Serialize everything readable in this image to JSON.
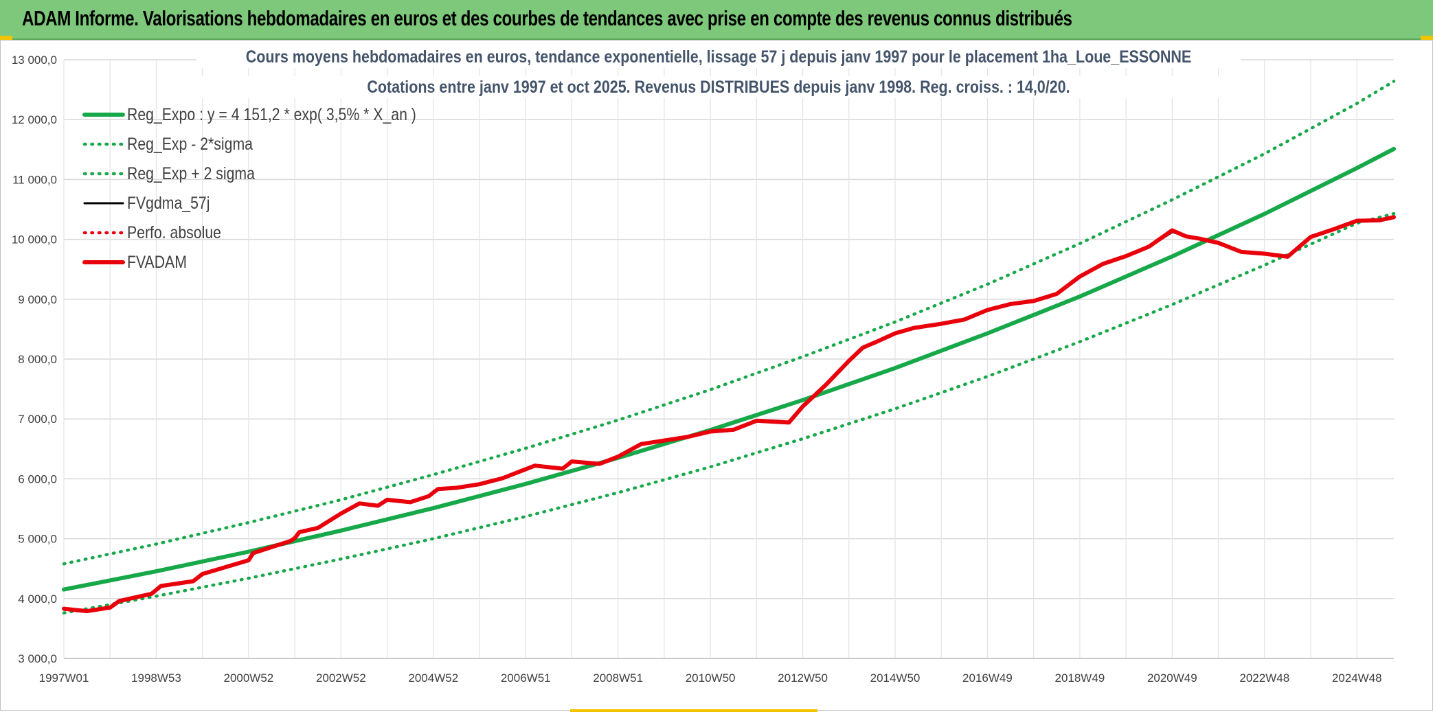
{
  "banner": {
    "title": "ADAM Informe. Valorisations hebdomadaires en euros et des courbes de tendances avec prise en compte des revenus connus distribués"
  },
  "colors": {
    "banner_bg": "#7dc87a",
    "trend": "#17a84a",
    "price": "#e8000b",
    "smooth": "#000000",
    "accent": "#f2c400"
  },
  "chart_data": {
    "type": "line",
    "title_line1": "Cours moyens hebdomadaires en euros, tendance exponentielle, lissage 57 j depuis janv 1997 pour le placement 1ha_Loue_ESSONNE",
    "title_line2": "Cotations entre janv 1997 et oct 2025. Revenus DISTRIBUES depuis janv 1998. Reg. croiss. : 14,0/20.",
    "xlabel": "",
    "ylabel": "",
    "xlim": [
      1997.0,
      2025.8
    ],
    "ylim": [
      3000,
      13000
    ],
    "y_ticks": [
      3000,
      4000,
      5000,
      6000,
      7000,
      8000,
      9000,
      10000,
      11000,
      12000,
      13000
    ],
    "y_tick_labels": [
      "3 000,0",
      "4 000,0",
      "5 000,0",
      "6 000,0",
      "7 000,0",
      "8 000,0",
      "9 000,0",
      "10 000,0",
      "11 000,0",
      "12 000,0",
      "13 000,0"
    ],
    "x_ticks": [
      1997.0,
      1999.0,
      2001.0,
      2003.0,
      2005.0,
      2007.0,
      2009.0,
      2011.0,
      2013.0,
      2015.0,
      2017.0,
      2019.0,
      2021.0,
      2023.0,
      2025.0
    ],
    "x_tick_labels": [
      "1997W01",
      "1998W53",
      "2000W52",
      "2002W52",
      "2004W52",
      "2006W51",
      "2008W51",
      "2010W50",
      "2012W50",
      "2014W50",
      "2016W49",
      "2018W49",
      "2020W49",
      "2022W48",
      "2024W48"
    ],
    "x_minor_gridlines": [
      1998.0,
      2000.0,
      2002.0,
      2004.0,
      2006.0,
      2008.0,
      2010.0,
      2012.0,
      2014.0,
      2016.0,
      2018.0,
      2020.0,
      2022.0,
      2024.0
    ],
    "grid": true,
    "legend_position": "top-left",
    "series": [
      {
        "name": "Reg_Expo : y = 4 151,2 * exp( 3,5% *  X_an )",
        "style": "solid-thick",
        "color": "#17a84a",
        "x": [
          1997,
          1999,
          2001,
          2003,
          2005,
          2007,
          2009,
          2011,
          2013,
          2015,
          2017,
          2019,
          2021,
          2023,
          2025,
          2025.8
        ],
        "values": [
          4151,
          4455,
          4783,
          5135,
          5510,
          5915,
          6350,
          6815,
          7315,
          7850,
          8430,
          9045,
          9715,
          10425,
          11190,
          11510
        ]
      },
      {
        "name": "Reg_Exp - 2*sigma",
        "style": "dotted",
        "color": "#17a84a",
        "x": [
          1997,
          1999,
          2001,
          2003,
          2005,
          2007,
          2009,
          2011,
          2013,
          2015,
          2017,
          2019,
          2021,
          2023,
          2025,
          2025.8
        ],
        "values": [
          3760,
          4040,
          4340,
          4660,
          5000,
          5370,
          5770,
          6200,
          6670,
          7170,
          7710,
          8290,
          8910,
          9570,
          10270,
          10430
        ]
      },
      {
        "name": "Reg_Exp + 2 sigma",
        "style": "dotted",
        "color": "#17a84a",
        "x": [
          1997,
          1999,
          2001,
          2003,
          2005,
          2007,
          2009,
          2011,
          2013,
          2015,
          2017,
          2019,
          2021,
          2023,
          2025,
          2025.8
        ],
        "values": [
          4580,
          4910,
          5270,
          5650,
          6070,
          6510,
          6980,
          7490,
          8040,
          8620,
          9250,
          9930,
          10660,
          11430,
          12270,
          12640
        ]
      },
      {
        "name": "FVgdma_57j",
        "style": "solid",
        "color": "#000000",
        "x": [
          1997.0,
          1997.5,
          1998.0,
          1998.2,
          1998.9,
          1999.1,
          1999.8,
          2000.0,
          2001.0,
          2001.1,
          2001.9,
          2002.0,
          2002.1,
          2002.5,
          2003.0,
          2003.4,
          2003.8,
          2004.0,
          2004.5,
          2004.9,
          2005.1,
          2005.5,
          2006.0,
          2006.5,
          2007.0,
          2007.2,
          2007.8,
          2008.0,
          2008.6,
          2009.0,
          2009.5,
          2010.0,
          2010.5,
          2011.0,
          2011.5,
          2012.0,
          2012.7,
          2013.0,
          2013.5,
          2014.0,
          2014.3,
          2014.6,
          2015.0,
          2015.4,
          2016.0,
          2016.5,
          2017.0,
          2017.5,
          2018.0,
          2018.5,
          2019.0,
          2019.5,
          2020.0,
          2020.5,
          2021.0,
          2021.3,
          2021.6,
          2022.0,
          2022.5,
          2023.0,
          2023.5,
          2024.0,
          2024.5,
          2025.0,
          2025.5,
          2025.8
        ],
        "values": [
          3820,
          3800,
          3860,
          3950,
          4090,
          4200,
          4300,
          4400,
          4650,
          4750,
          4970,
          5000,
          5100,
          5190,
          5430,
          5580,
          5560,
          5640,
          5620,
          5700,
          5820,
          5860,
          5920,
          6000,
          6150,
          6230,
          6180,
          6280,
          6260,
          6360,
          6590,
          6630,
          6710,
          6780,
          6830,
          6960,
          6950,
          7200,
          7580,
          7960,
          8200,
          8280,
          8440,
          8510,
          8600,
          8650,
          8830,
          8910,
          8980,
          9080,
          9390,
          9580,
          9730,
          9870,
          10120,
          10060,
          10020,
          9930,
          9800,
          9750,
          9720,
          10030,
          10180,
          10300,
          10330,
          10360
        ]
      },
      {
        "name": "Perfo. absolue",
        "style": "dotted",
        "color": "#e8000b",
        "x": [
          1997.0,
          1997.5,
          1998.0,
          1998.2,
          1998.9,
          1999.1,
          1999.8,
          2000.0,
          2001.0,
          2001.1,
          2001.9,
          2002.0,
          2002.1,
          2002.5,
          2003.0,
          2003.4,
          2003.8,
          2004.0,
          2004.5,
          2004.9,
          2005.1,
          2005.5,
          2006.0,
          2006.5,
          2007.0,
          2007.2,
          2007.8,
          2008.0,
          2008.6,
          2009.0,
          2009.5,
          2010.0,
          2010.5,
          2011.0,
          2011.5,
          2012.0,
          2012.7,
          2013.0,
          2013.5,
          2014.0,
          2014.3,
          2014.6,
          2015.0,
          2015.4,
          2016.0,
          2016.5,
          2017.0,
          2017.5,
          2018.0,
          2018.5,
          2019.0,
          2019.5,
          2020.0,
          2020.5,
          2021.0,
          2021.3,
          2021.6,
          2022.0,
          2022.5,
          2023.0,
          2023.5,
          2024.0,
          2024.5,
          2025.0,
          2025.5,
          2025.8
        ],
        "values": [
          3830,
          3790,
          3850,
          3960,
          4080,
          4210,
          4290,
          4410,
          4640,
          4760,
          4960,
          5010,
          5110,
          5180,
          5420,
          5590,
          5550,
          5650,
          5610,
          5710,
          5830,
          5850,
          5910,
          6010,
          6160,
          6220,
          6170,
          6290,
          6250,
          6370,
          6580,
          6640,
          6700,
          6790,
          6820,
          6970,
          6940,
          7210,
          7570,
          7970,
          8190,
          8290,
          8430,
          8520,
          8590,
          8660,
          8820,
          8920,
          8970,
          9090,
          9380,
          9590,
          9720,
          9880,
          10150,
          10050,
          10010,
          9940,
          9790,
          9760,
          9710,
          10040,
          10170,
          10310,
          10320,
          10370
        ]
      },
      {
        "name": "FVADAM",
        "style": "solid-thick",
        "color": "#e8000b",
        "x": [
          1997.0,
          1997.5,
          1998.0,
          1998.2,
          1998.9,
          1999.1,
          1999.8,
          2000.0,
          2001.0,
          2001.1,
          2001.9,
          2002.0,
          2002.1,
          2002.5,
          2003.0,
          2003.4,
          2003.8,
          2004.0,
          2004.5,
          2004.9,
          2005.1,
          2005.5,
          2006.0,
          2006.5,
          2007.0,
          2007.2,
          2007.8,
          2008.0,
          2008.6,
          2009.0,
          2009.5,
          2010.0,
          2010.5,
          2011.0,
          2011.5,
          2012.0,
          2012.7,
          2013.0,
          2013.5,
          2014.0,
          2014.3,
          2014.6,
          2015.0,
          2015.4,
          2016.0,
          2016.5,
          2017.0,
          2017.5,
          2018.0,
          2018.5,
          2019.0,
          2019.5,
          2020.0,
          2020.5,
          2021.0,
          2021.3,
          2021.6,
          2022.0,
          2022.5,
          2023.0,
          2023.5,
          2024.0,
          2024.5,
          2025.0,
          2025.5,
          2025.8
        ],
        "values": [
          3830,
          3790,
          3850,
          3960,
          4080,
          4210,
          4290,
          4410,
          4640,
          4760,
          4960,
          5010,
          5110,
          5180,
          5420,
          5590,
          5550,
          5650,
          5610,
          5710,
          5830,
          5850,
          5910,
          6010,
          6160,
          6220,
          6170,
          6290,
          6250,
          6370,
          6580,
          6640,
          6700,
          6790,
          6820,
          6970,
          6940,
          7210,
          7570,
          7970,
          8190,
          8290,
          8430,
          8520,
          8590,
          8660,
          8820,
          8920,
          8970,
          9090,
          9380,
          9590,
          9720,
          9880,
          10150,
          10050,
          10010,
          9940,
          9790,
          9760,
          9710,
          10040,
          10170,
          10310,
          10320,
          10370
        ]
      }
    ]
  }
}
